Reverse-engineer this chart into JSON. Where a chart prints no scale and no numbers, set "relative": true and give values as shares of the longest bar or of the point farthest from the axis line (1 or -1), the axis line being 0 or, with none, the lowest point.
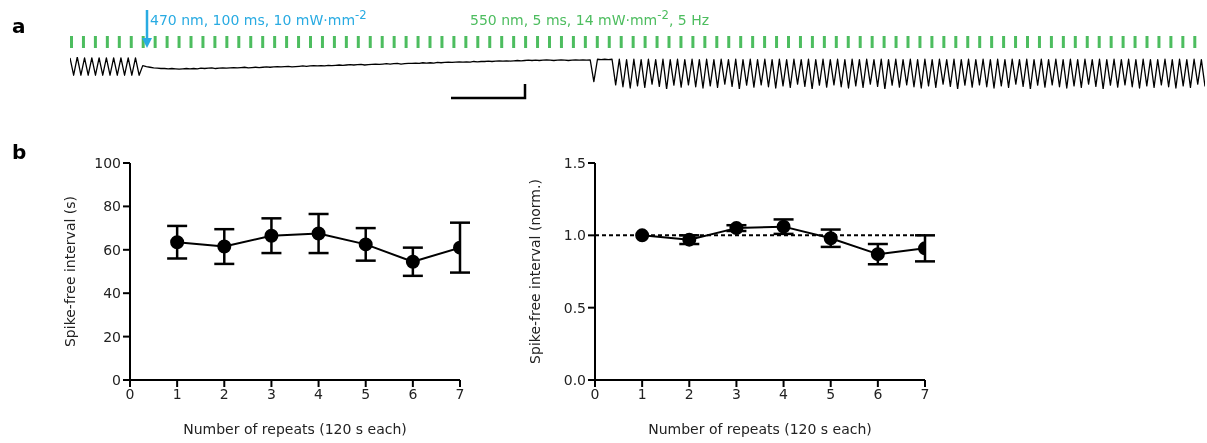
{
  "chart_data": [
    {
      "type": "line",
      "title": "a",
      "annotations": [
        "470 nm, 100 ms, 10 mW·mm$^{-2}$",
        "550 nm, 5 ms, 14 mW·mm$^{-2}$, 5 Hz"
      ],
      "relative": true,
      "legend": false,
      "grid": false,
      "marker": "none",
      "line_style": "solid",
      "categories": [
        null,
        null,
        null,
        null,
        null,
        null,
        null,
        null,
        null,
        null,
        null,
        null,
        null,
        null,
        null,
        null,
        null,
        null,
        null,
        null,
        null,
        null,
        null,
        null,
        null,
        null,
        null,
        null,
        null,
        null,
        null,
        null,
        null,
        null,
        null,
        null,
        null,
        null,
        null,
        null,
        null,
        null,
        null,
        null,
        null,
        null,
        null,
        null,
        null,
        null,
        null,
        null,
        null,
        null,
        null,
        null,
        null,
        null,
        null,
        null,
        null,
        null,
        null,
        null,
        null,
        null,
        null,
        null,
        null,
        null,
        null,
        null,
        null,
        null,
        null,
        null,
        null,
        null,
        null,
        null,
        null,
        null,
        null,
        null,
        null,
        null,
        null,
        null,
        null,
        null,
        null,
        null,
        null,
        null,
        null,
        null,
        null,
        null,
        null,
        null,
        null,
        null,
        null,
        null,
        null,
        null,
        null,
        null,
        null,
        null,
        null,
        null,
        null,
        null,
        null,
        null,
        null,
        null,
        null,
        null,
        null,
        null,
        null,
        null,
        null,
        null,
        null,
        null,
        null,
        null,
        null,
        null,
        null,
        null,
        null,
        null,
        null,
        null,
        null,
        null,
        null,
        null,
        null,
        null,
        null,
        null,
        null,
        null,
        null,
        null,
        null,
        null,
        null,
        null,
        null,
        null,
        null,
        null,
        null,
        null,
        null,
        null,
        null,
        null,
        null,
        null,
        null,
        null,
        null,
        null,
        null,
        null,
        null,
        null,
        null,
        null,
        null,
        null,
        null,
        null,
        null,
        null,
        null,
        null,
        null,
        null,
        null,
        null,
        null,
        null,
        null,
        null,
        null,
        null,
        null,
        null,
        null,
        null,
        null,
        null,
        null,
        null,
        null,
        null,
        null,
        null,
        null,
        null,
        null,
        null,
        null,
        null,
        null,
        null,
        null,
        null,
        null,
        null,
        null,
        null,
        null,
        null,
        null,
        null,
        null,
        null,
        null,
        null,
        null,
        null,
        null,
        null,
        null,
        null,
        null,
        null,
        null,
        null,
        null,
        null,
        null,
        null,
        null,
        null,
        null,
        null,
        null,
        null,
        null,
        null,
        null,
        null,
        null,
        null,
        null,
        null,
        null,
        null,
        null,
        null,
        null,
        null,
        null,
        null,
        null,
        null,
        null,
        null,
        null,
        null,
        null,
        null,
        null,
        null,
        null,
        null,
        null,
        null,
        null,
        null,
        null,
        null,
        null,
        null,
        null,
        null,
        null,
        null,
        null,
        null,
        null,
        null,
        null,
        null,
        null,
        null,
        null,
        null,
        null,
        null,
        null,
        null,
        null,
        null,
        null,
        null,
        null,
        null,
        null,
        null,
        null,
        null,
        null
      ],
      "series": [
        {
          "color": "#000000",
          "values": [
            0.97,
            0.43,
            1,
            0.43,
            0.97,
            0.43,
            0.97,
            0.43,
            0.97,
            0.43,
            0.97,
            0.43,
            0.97,
            0.43,
            0.97,
            0.43,
            0.97,
            0.43,
            0.97,
            0.43,
            0.73,
            0.7,
            0.68,
            0.66,
            0.65,
            0.64,
            0.64,
            0.63,
            0.64,
            0.63,
            0.62,
            0.63,
            0.64,
            0.63,
            0.64,
            0.63,
            0.65,
            0.64,
            0.65,
            0.66,
            0.64,
            0.65,
            0.66,
            0.65,
            0.66,
            0.67,
            0.66,
            0.67,
            0.68,
            0.66,
            0.67,
            0.68,
            0.67,
            0.68,
            0.69,
            0.68,
            0.69,
            0.7,
            0.69,
            0.7,
            0.71,
            0.69,
            0.7,
            0.71,
            0.72,
            0.71,
            0.72,
            0.73,
            0.72,
            0.73,
            0.72,
            0.74,
            0.73,
            0.74,
            0.75,
            0.74,
            0.75,
            0.76,
            0.75,
            0.76,
            0.77,
            0.75,
            0.76,
            0.77,
            0.78,
            0.77,
            0.78,
            0.79,
            0.78,
            0.79,
            0.8,
            0.78,
            0.79,
            0.8,
            0.8,
            0.81,
            0.8,
            0.82,
            0.81,
            0.82,
            0.81,
            0.83,
            0.82,
            0.83,
            0.84,
            0.83,
            0.84,
            0.85,
            0.84,
            0.85,
            0.84,
            0.86,
            0.85,
            0.86,
            0.86,
            0.87,
            0.86,
            0.87,
            0.88,
            0.87,
            0.88,
            0.87,
            0.88,
            0.89,
            0.88,
            0.89,
            0.9,
            0.89,
            0.9,
            0.89,
            0.9,
            0.91,
            0.9,
            0.89,
            0.9,
            0.91,
            0.9,
            0.89,
            0.9,
            0.91,
            0.9,
            0.91,
            0.9,
            0.91,
            0.23,
            0.93,
            0.92,
            0.93,
            0.92,
            0.93,
            0.13,
            0.93,
            0.07,
            0.92,
            0.03,
            0.93,
            0.1,
            0.92,
            0.05,
            0.93,
            0.15,
            0.92,
            0.08,
            0.93,
            0,
            0.92,
            0.12,
            0.93,
            0.06,
            0.92,
            0.13,
            0.93,
            0.07,
            0.92,
            0.03,
            0.93,
            0.1,
            0.92,
            0.05,
            0.93,
            0.15,
            0.92,
            0.08,
            0.93,
            0,
            0.92,
            0.12,
            0.93,
            0.06,
            0.92,
            0.13,
            0.93,
            0.07,
            0.92,
            0.03,
            0.93,
            0.1,
            0.92,
            0.05,
            0.93,
            0.15,
            0.92,
            0.08,
            0.93,
            0,
            0.92,
            0.12,
            0.93,
            0.06,
            0.92,
            0.13,
            0.93,
            0.07,
            0.92,
            0.03,
            0.93,
            0.1,
            0.92,
            0.05,
            0.93,
            0.15,
            0.92,
            0.08,
            0.93,
            0,
            0.92,
            0.12,
            0.93,
            0.06,
            0.92,
            0.13,
            0.93,
            0.07,
            0.92,
            0.03,
            0.93,
            0.1,
            0.92,
            0.05,
            0.93,
            0.15,
            0.92,
            0.08,
            0.93,
            0,
            0.92,
            0.12,
            0.93,
            0.06,
            0.92,
            0.13,
            0.93,
            0.07,
            0.92,
            0.03,
            0.93,
            0.1,
            0.92,
            0.05,
            0.93,
            0.15,
            0.92,
            0.08,
            0.93,
            0,
            0.92,
            0.12,
            0.93,
            0.06,
            0.92,
            0.13,
            0.93,
            0.07,
            0.92,
            0.03,
            0.93,
            0.1,
            0.92,
            0.05,
            0.93,
            0.15,
            0.92,
            0.08,
            0.93,
            0,
            0.92,
            0.12,
            0.93,
            0.06,
            0.92,
            0.13,
            0.93,
            0.07,
            0.92,
            0.03,
            0.93,
            0.1,
            0.92,
            0.05,
            0.92,
            0.13,
            0.93,
            0.07,
            0.92,
            0.03,
            0.93,
            0.1,
            0.92,
            0.05,
            0.93,
            0.15,
            0.92,
            0.08
          ]
        }
      ]
    },
    {
      "type": "line",
      "title": "b",
      "xlabel": "Number of repeats (120 s each)",
      "ylabel": "Spike-free interval (s)",
      "x": [
        1,
        2,
        3,
        4,
        5,
        6,
        7
      ],
      "series": [
        {
          "color": "#000000",
          "values": [
            63.5,
            61.5,
            66.5,
            67.5,
            62.5,
            54.5,
            61
          ],
          "errors": [
            7.5,
            8,
            8,
            9,
            7.5,
            6.5,
            11.5
          ]
        }
      ],
      "xlim": [
        0,
        7
      ],
      "xticks": [
        0,
        1,
        2,
        3,
        4,
        5,
        6,
        7
      ],
      "ylim": [
        0,
        100
      ],
      "yticks": [
        0,
        20,
        40,
        60,
        80,
        100
      ],
      "grid": false,
      "legend": false,
      "marker": "circle",
      "line_style": "solid"
    },
    {
      "type": "line",
      "xlabel": "Number of repeats (120 s each)",
      "ylabel": "Spike-free interval (norm.)",
      "x": [
        1,
        2,
        3,
        4,
        5,
        6,
        7
      ],
      "series": [
        {
          "color": "#000000",
          "values": [
            1.0,
            0.97,
            1.05,
            1.06,
            0.98,
            0.87,
            0.91
          ],
          "errors": [
            0,
            0.03,
            0.02,
            0.05,
            0.06,
            0.07,
            0.09
          ]
        }
      ],
      "xlim": [
        0,
        7
      ],
      "xticks": [
        0,
        1,
        2,
        3,
        4,
        5,
        6,
        7
      ],
      "ylim": [
        0,
        1.5
      ],
      "yticks": [
        {
          "value": 0,
          "label": "0.0"
        },
        {
          "value": 0.5,
          "label": "0.5"
        },
        {
          "value": 1,
          "label": "1.0"
        },
        {
          "value": 1.5,
          "label": "1.5"
        }
      ],
      "ref_lines": [
        {
          "axis": "y",
          "value": 1,
          "label": null,
          "color": "#000000",
          "line_style": "dashed"
        }
      ],
      "grid": false,
      "legend": false,
      "marker": "circle",
      "line_style": "solid"
    }
  ]
}
